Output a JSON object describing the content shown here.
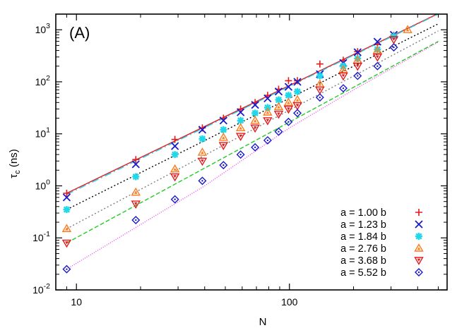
{
  "chart_data": {
    "type": "scatter",
    "panel_label": "(A)",
    "xlabel": "N",
    "ylabel": "τc (ns)",
    "xscale": "log",
    "yscale": "log",
    "xlim": [
      8,
      550
    ],
    "ylim": [
      0.01,
      2000
    ],
    "x_ticks": [
      {
        "value": 10,
        "label": "10"
      },
      {
        "value": 100,
        "label": "100"
      }
    ],
    "y_ticks": [
      {
        "value": 0.01,
        "base": "10",
        "exp": "-2"
      },
      {
        "value": 0.1,
        "base": "10",
        "exp": "-1"
      },
      {
        "value": 1,
        "base": "10",
        "exp": "0"
      },
      {
        "value": 10,
        "base": "10",
        "exp": "1"
      },
      {
        "value": 100,
        "base": "10",
        "exp": "2"
      },
      {
        "value": 1000,
        "base": "10",
        "exp": "3"
      }
    ],
    "legend_position": "bottom-right",
    "series": [
      {
        "name": "a = 1.00 b",
        "marker": "plus",
        "color": "#e41a1c",
        "x": [
          9,
          19,
          29,
          39,
          49,
          59,
          69,
          79,
          89,
          99,
          109,
          139,
          179,
          209,
          259,
          309
        ],
        "y": [
          0.72,
          3.2,
          7.8,
          13,
          20,
          30,
          40,
          55,
          72,
          105,
          105,
          220,
          260,
          380,
          520,
          780
        ]
      },
      {
        "name": "a = 1.23 b",
        "marker": "x",
        "color": "#1a1acc",
        "x": [
          9,
          19,
          29,
          39,
          49,
          59,
          69,
          79,
          89,
          99,
          109,
          139,
          179,
          209,
          259,
          309
        ],
        "y": [
          0.6,
          2.6,
          5.8,
          12,
          18,
          26,
          36,
          48,
          65,
          80,
          100,
          140,
          230,
          370,
          590,
          800
        ]
      },
      {
        "name": "a = 1.84 b",
        "marker": "star",
        "color": "#22d8e8",
        "x": [
          9,
          19,
          29,
          39,
          49,
          59,
          69,
          79,
          89,
          99,
          109,
          139,
          179,
          209,
          259,
          309
        ],
        "y": [
          0.35,
          1.5,
          4,
          8,
          12,
          18,
          25,
          32,
          45,
          55,
          65,
          130,
          200,
          280,
          420,
          750
        ]
      },
      {
        "name": "a = 2.76 b",
        "marker": "triangle-up",
        "color": "#ff7a1a",
        "x": [
          9,
          19,
          29,
          39,
          49,
          59,
          69,
          79,
          89,
          99,
          109,
          139,
          179,
          209,
          259,
          359
        ],
        "y": [
          0.15,
          0.75,
          2.1,
          4.4,
          8.5,
          13,
          18,
          26,
          33,
          40,
          45,
          90,
          170,
          260,
          400,
          1000
        ]
      },
      {
        "name": "a = 3.68 b",
        "marker": "triangle-down",
        "color": "#e41a1c",
        "x": [
          9,
          19,
          29,
          39,
          49,
          59,
          69,
          79,
          89,
          99,
          109,
          139,
          179,
          209,
          259,
          309
        ],
        "y": [
          0.08,
          0.45,
          1.5,
          3,
          6,
          9,
          13,
          18,
          24,
          30,
          35,
          70,
          130,
          200,
          300,
          650
        ]
      },
      {
        "name": "a = 5.52 b",
        "marker": "diamond",
        "color": "#1a1acc",
        "x": [
          9,
          19,
          29,
          39,
          49,
          59,
          69,
          79,
          89,
          99,
          109,
          139,
          179,
          209,
          259,
          309
        ],
        "y": [
          0.025,
          0.22,
          0.55,
          1.25,
          2.5,
          4,
          5.5,
          7.5,
          11,
          17,
          25,
          50,
          75,
          130,
          200,
          460
        ]
      }
    ],
    "fit_lines": [
      {
        "color": "#e41a1c",
        "dash": "none",
        "x": [
          9,
          500
        ],
        "y": [
          0.72,
          2050
        ]
      },
      {
        "color": "#2ad0e8",
        "dash": "10,4,2,4",
        "x": [
          9,
          500
        ],
        "y": [
          0.68,
          2000
        ]
      },
      {
        "color": "#000000",
        "dash": "2,3",
        "x": [
          9,
          500
        ],
        "y": [
          0.35,
          1300
        ]
      },
      {
        "color": "#808080",
        "dash": "2,3",
        "x": [
          9,
          500
        ],
        "y": [
          0.15,
          950
        ]
      },
      {
        "color": "#22cc22",
        "dash": "6,3",
        "x": [
          9,
          500
        ],
        "y": [
          0.08,
          600
        ]
      },
      {
        "color": "#ee44ee",
        "dash": "1,2",
        "x": [
          9,
          40,
          100,
          200,
          500
        ],
        "y": [
          0.025,
          1.0,
          13,
          70,
          580
        ]
      }
    ]
  }
}
